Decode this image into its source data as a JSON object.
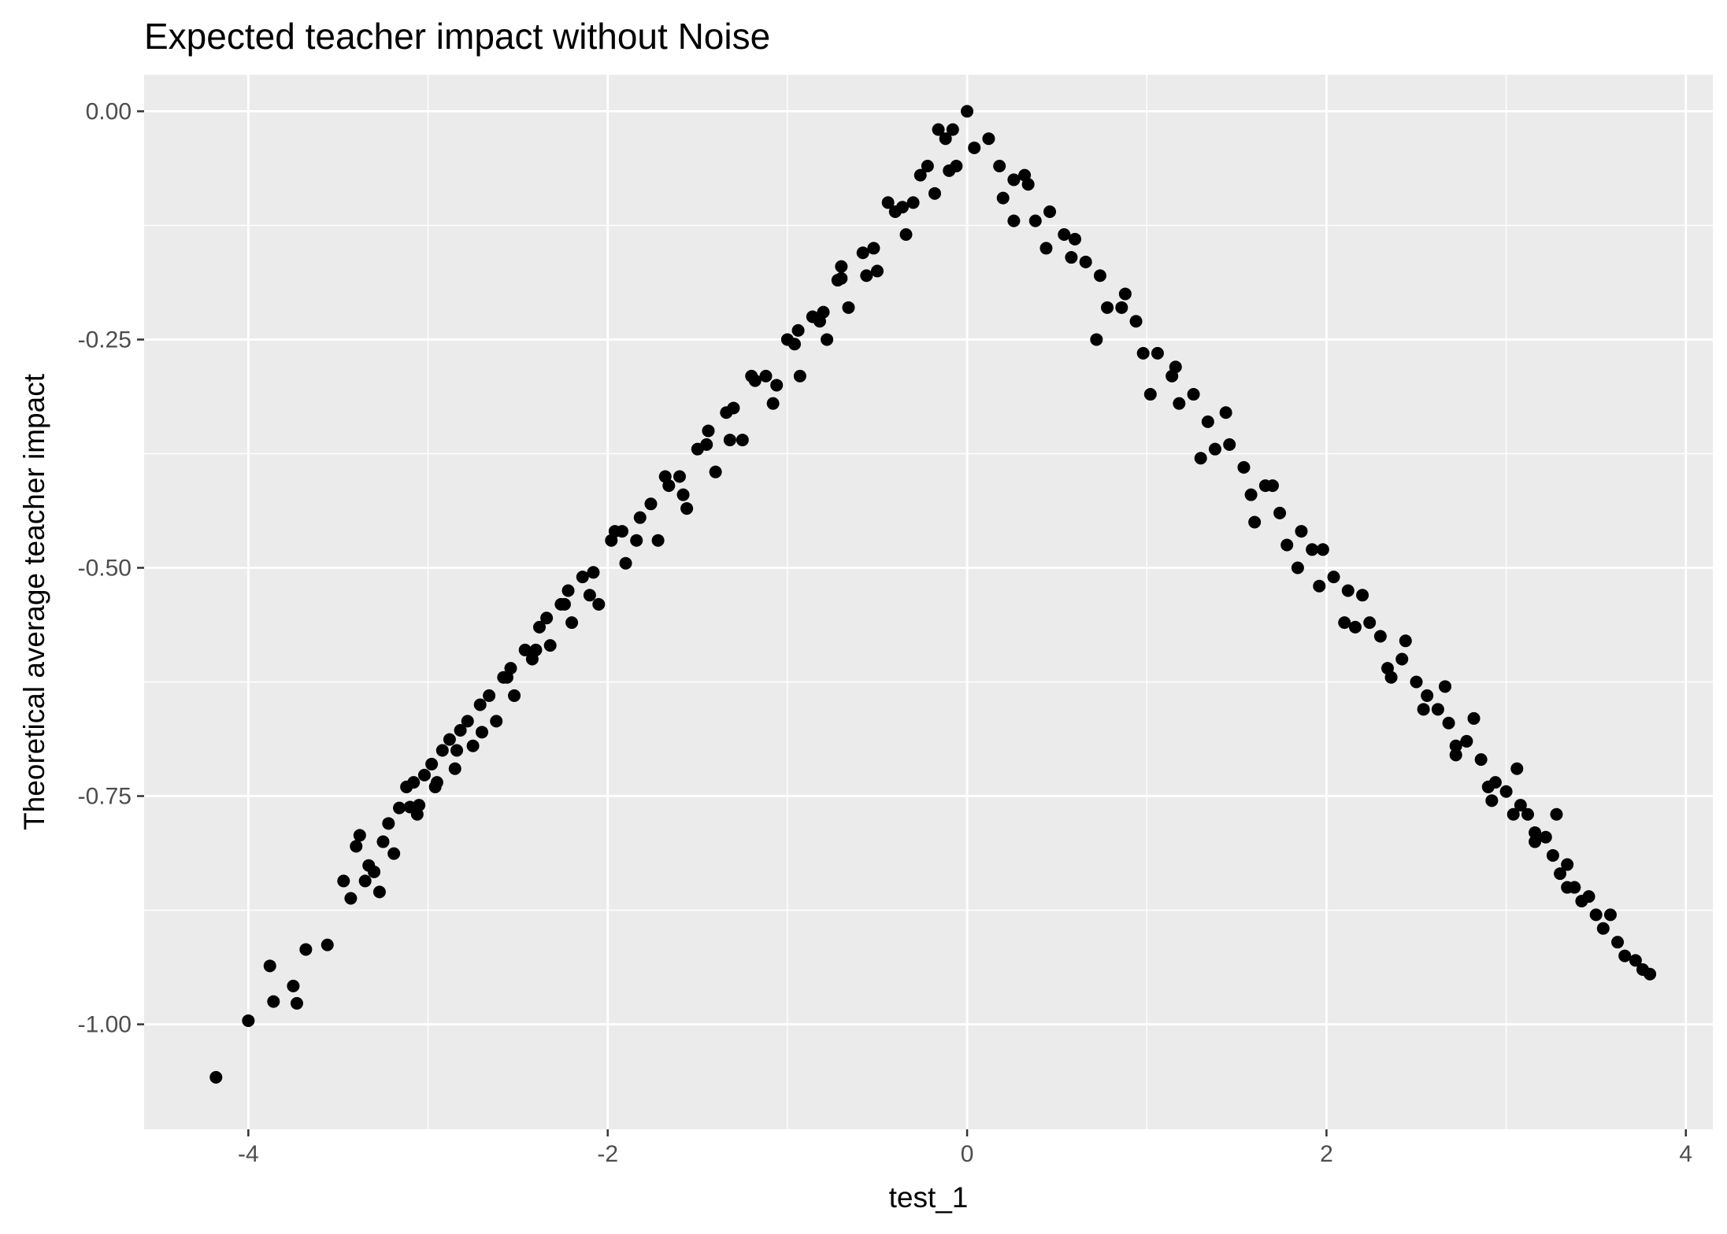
{
  "chart_data": {
    "type": "scatter",
    "title": "Expected teacher impact without Noise",
    "xlabel": "test_1",
    "ylabel": "Theoretical average teacher impact",
    "xlim": [
      -4.58,
      4.15
    ],
    "ylim": [
      -1.115,
      0.04
    ],
    "x_ticks": [
      {
        "value": -4,
        "label": "-4"
      },
      {
        "value": -2,
        "label": "-2"
      },
      {
        "value": 0,
        "label": "0"
      },
      {
        "value": 2,
        "label": "2"
      },
      {
        "value": 4,
        "label": "4"
      }
    ],
    "y_ticks": [
      {
        "value": 0,
        "label": "0.00"
      },
      {
        "value": -0.25,
        "label": "-0.25"
      },
      {
        "value": -0.5,
        "label": "-0.50"
      },
      {
        "value": -0.75,
        "label": "-0.75"
      },
      {
        "value": -1,
        "label": "-1.00"
      }
    ],
    "grid": true,
    "background": "#ebebeb",
    "grid_color": "#ffffff",
    "point_color": "#000000",
    "series": [
      {
        "points": [
          [
            -4.18,
            -1.058
          ],
          [
            -4.0,
            -0.996
          ],
          [
            -3.88,
            -0.936
          ],
          [
            -3.86,
            -0.975
          ],
          [
            -3.75,
            -0.958
          ],
          [
            -3.73,
            -0.977
          ],
          [
            -3.68,
            -0.918
          ],
          [
            -3.56,
            -0.913
          ],
          [
            -3.47,
            -0.843
          ],
          [
            -3.43,
            -0.862
          ],
          [
            -3.4,
            -0.805
          ],
          [
            -3.38,
            -0.793
          ],
          [
            -3.35,
            -0.843
          ],
          [
            -3.33,
            -0.826
          ],
          [
            -3.3,
            -0.833
          ],
          [
            -3.27,
            -0.855
          ],
          [
            -3.25,
            -0.8
          ],
          [
            -3.22,
            -0.78
          ],
          [
            -3.19,
            -0.813
          ],
          [
            -3.16,
            -0.763
          ],
          [
            -3.12,
            -0.74
          ],
          [
            -3.1,
            -0.762
          ],
          [
            -3.08,
            -0.735
          ],
          [
            -3.05,
            -0.76
          ],
          [
            -3.02,
            -0.727
          ],
          [
            -2.98,
            -0.715
          ],
          [
            -2.95,
            -0.735
          ],
          [
            -2.92,
            -0.7
          ],
          [
            -2.88,
            -0.688
          ],
          [
            -2.85,
            -0.72
          ],
          [
            -2.82,
            -0.678
          ],
          [
            -2.78,
            -0.668
          ],
          [
            -2.75,
            -0.695
          ],
          [
            -2.71,
            -0.65
          ],
          [
            -2.66,
            -0.64
          ],
          [
            -2.62,
            -0.668
          ],
          [
            -2.58,
            -0.62
          ],
          [
            -2.54,
            -0.61
          ],
          [
            -2.52,
            -0.64
          ],
          [
            -2.46,
            -0.59
          ],
          [
            -2.42,
            -0.6
          ],
          [
            -2.38,
            -0.565
          ],
          [
            -2.34,
            -0.555
          ],
          [
            -2.32,
            -0.585
          ],
          [
            -2.26,
            -0.54
          ],
          [
            -2.22,
            -0.525
          ],
          [
            -2.2,
            -0.56
          ],
          [
            -2.14,
            -0.51
          ],
          [
            -2.08,
            -0.505
          ],
          [
            -2.05,
            -0.54
          ],
          [
            -1.98,
            -0.47
          ],
          [
            -1.92,
            -0.46
          ],
          [
            -1.9,
            -0.495
          ],
          [
            -1.82,
            -0.445
          ],
          [
            -1.76,
            -0.43
          ],
          [
            -1.72,
            -0.47
          ],
          [
            -1.66,
            -0.41
          ],
          [
            -1.6,
            -0.4
          ],
          [
            -1.56,
            -0.435
          ],
          [
            -1.5,
            -0.37
          ],
          [
            -1.45,
            -0.365
          ],
          [
            -1.4,
            -0.395
          ],
          [
            -1.34,
            -0.33
          ],
          [
            -1.3,
            -0.325
          ],
          [
            -1.25,
            -0.36
          ],
          [
            -1.18,
            -0.295
          ],
          [
            -1.12,
            -0.29
          ],
          [
            -1.08,
            -0.32
          ],
          [
            -1.0,
            -0.25
          ],
          [
            -0.96,
            -0.255
          ],
          [
            -0.93,
            -0.29
          ],
          [
            -0.86,
            -0.225
          ],
          [
            -0.8,
            -0.22
          ],
          [
            -0.78,
            -0.25
          ],
          [
            -0.72,
            -0.185
          ],
          [
            -0.7,
            -0.183
          ],
          [
            -0.66,
            -0.215
          ],
          [
            -0.58,
            -0.155
          ],
          [
            -0.52,
            -0.15
          ],
          [
            -0.5,
            -0.175
          ],
          [
            -0.4,
            -0.11
          ],
          [
            -0.36,
            -0.105
          ],
          [
            -0.34,
            -0.135
          ],
          [
            -0.26,
            -0.07
          ],
          [
            -0.22,
            -0.06
          ],
          [
            -0.18,
            -0.09
          ],
          [
            -0.12,
            -0.03
          ],
          [
            -0.08,
            -0.02
          ],
          [
            -0.1,
            -0.065
          ],
          [
            0.0,
            0.0
          ],
          [
            0.04,
            -0.04
          ],
          [
            0.12,
            -0.03
          ],
          [
            0.18,
            -0.06
          ],
          [
            0.2,
            -0.095
          ],
          [
            0.26,
            -0.075
          ],
          [
            0.34,
            -0.08
          ],
          [
            0.38,
            -0.12
          ],
          [
            0.46,
            -0.11
          ],
          [
            0.54,
            -0.135
          ],
          [
            0.58,
            -0.16
          ],
          [
            0.66,
            -0.165
          ],
          [
            0.74,
            -0.18
          ],
          [
            0.78,
            -0.215
          ],
          [
            0.86,
            -0.215
          ],
          [
            0.94,
            -0.23
          ],
          [
            0.98,
            -0.265
          ],
          [
            1.06,
            -0.265
          ],
          [
            1.14,
            -0.29
          ],
          [
            1.18,
            -0.32
          ],
          [
            1.26,
            -0.31
          ],
          [
            1.34,
            -0.34
          ],
          [
            1.38,
            -0.37
          ],
          [
            1.46,
            -0.365
          ],
          [
            1.54,
            -0.39
          ],
          [
            1.58,
            -0.42
          ],
          [
            1.66,
            -0.41
          ],
          [
            1.74,
            -0.44
          ],
          [
            1.78,
            -0.475
          ],
          [
            1.86,
            -0.46
          ],
          [
            1.92,
            -0.48
          ],
          [
            1.96,
            -0.52
          ],
          [
            2.04,
            -0.51
          ],
          [
            2.12,
            -0.525
          ],
          [
            2.16,
            -0.565
          ],
          [
            2.24,
            -0.56
          ],
          [
            2.3,
            -0.575
          ],
          [
            2.34,
            -0.61
          ],
          [
            2.42,
            -0.6
          ],
          [
            2.5,
            -0.625
          ],
          [
            2.54,
            -0.655
          ],
          [
            2.62,
            -0.655
          ],
          [
            2.68,
            -0.67
          ],
          [
            2.72,
            -0.705
          ],
          [
            2.78,
            -0.69
          ],
          [
            2.86,
            -0.71
          ],
          [
            2.9,
            -0.74
          ],
          [
            2.94,
            -0.735
          ],
          [
            3.0,
            -0.745
          ],
          [
            3.04,
            -0.77
          ],
          [
            3.08,
            -0.76
          ],
          [
            3.12,
            -0.77
          ],
          [
            3.16,
            -0.8
          ],
          [
            3.22,
            -0.795
          ],
          [
            3.26,
            -0.815
          ],
          [
            3.3,
            -0.835
          ],
          [
            3.34,
            -0.825
          ],
          [
            3.38,
            -0.85
          ],
          [
            3.42,
            -0.865
          ],
          [
            3.46,
            -0.86
          ],
          [
            3.5,
            -0.88
          ],
          [
            3.54,
            -0.895
          ],
          [
            3.58,
            -0.88
          ],
          [
            3.62,
            -0.91
          ],
          [
            3.66,
            -0.925
          ],
          [
            3.72,
            -0.93
          ],
          [
            3.76,
            -0.94
          ],
          [
            3.8,
            -0.945
          ],
          [
            3.34,
            -0.85
          ],
          [
            3.28,
            -0.77
          ],
          [
            3.16,
            -0.79
          ],
          [
            3.06,
            -0.72
          ],
          [
            2.92,
            -0.755
          ],
          [
            2.82,
            -0.665
          ],
          [
            2.72,
            -0.695
          ],
          [
            2.66,
            -0.63
          ],
          [
            2.56,
            -0.64
          ],
          [
            2.44,
            -0.58
          ],
          [
            2.36,
            -0.62
          ],
          [
            2.2,
            -0.53
          ],
          [
            2.1,
            -0.56
          ],
          [
            1.98,
            -0.48
          ],
          [
            1.84,
            -0.5
          ],
          [
            1.7,
            -0.41
          ],
          [
            1.6,
            -0.45
          ],
          [
            1.44,
            -0.33
          ],
          [
            1.3,
            -0.38
          ],
          [
            1.16,
            -0.28
          ],
          [
            1.02,
            -0.31
          ],
          [
            0.88,
            -0.2
          ],
          [
            0.72,
            -0.25
          ],
          [
            0.6,
            -0.14
          ],
          [
            0.44,
            -0.15
          ],
          [
            0.32,
            -0.07
          ],
          [
            0.26,
            -0.12
          ],
          [
            -0.06,
            -0.06
          ],
          [
            -0.16,
            -0.02
          ],
          [
            -0.3,
            -0.1
          ],
          [
            -0.44,
            -0.1
          ],
          [
            -0.56,
            -0.18
          ],
          [
            -0.7,
            -0.17
          ],
          [
            -0.82,
            -0.23
          ],
          [
            -0.94,
            -0.24
          ],
          [
            -1.06,
            -0.3
          ],
          [
            -1.2,
            -0.29
          ],
          [
            -1.32,
            -0.36
          ],
          [
            -1.44,
            -0.35
          ],
          [
            -1.58,
            -0.42
          ],
          [
            -1.68,
            -0.4
          ],
          [
            -1.84,
            -0.47
          ],
          [
            -1.96,
            -0.46
          ],
          [
            -2.1,
            -0.53
          ],
          [
            -2.24,
            -0.54
          ],
          [
            -2.4,
            -0.59
          ],
          [
            -2.56,
            -0.62
          ],
          [
            -2.7,
            -0.68
          ],
          [
            -2.84,
            -0.7
          ],
          [
            -2.96,
            -0.74
          ],
          [
            -3.06,
            -0.77
          ]
        ]
      }
    ]
  }
}
